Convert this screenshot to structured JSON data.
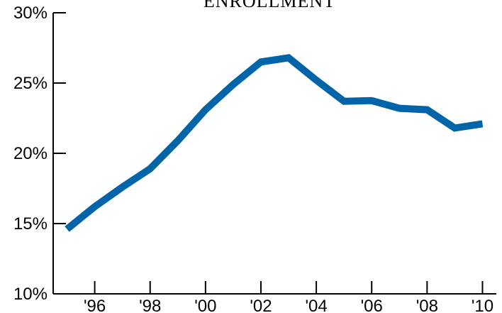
{
  "chart_data": {
    "type": "line",
    "title": "ENROLLMENT",
    "xlabel": "",
    "ylabel": "",
    "x": [
      1995,
      1996,
      1997,
      1998,
      1999,
      2000,
      2001,
      2002,
      2003,
      2004,
      2005,
      2006,
      2007,
      2008,
      2009,
      2010
    ],
    "x_tick_values": [
      1996,
      1998,
      2000,
      2002,
      2004,
      2006,
      2008,
      2010
    ],
    "x_tick_labels": [
      "'96",
      "'98",
      "'00",
      "'02",
      "'04",
      "'06",
      "'08",
      "'10"
    ],
    "series": [
      {
        "name": "",
        "color": "#0064a8",
        "values": [
          14.6,
          16.2,
          17.6,
          18.9,
          20.9,
          23.1,
          24.9,
          26.5,
          26.8,
          25.2,
          23.7,
          23.75,
          23.2,
          23.1,
          21.8,
          22.1
        ]
      }
    ],
    "y_tick_values": [
      10,
      15,
      20,
      25,
      30
    ],
    "y_tick_labels": [
      "10%",
      "15%",
      "20%",
      "25%",
      "30%"
    ],
    "ylim": [
      10,
      30
    ],
    "xlim": [
      1994.5,
      2010.5
    ],
    "grid": false,
    "legend": "none"
  }
}
